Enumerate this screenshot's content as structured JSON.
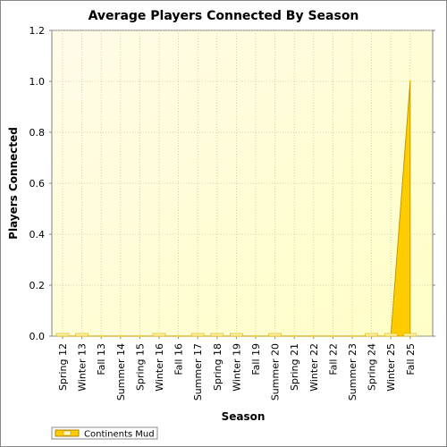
{
  "chart_data": {
    "type": "area",
    "title": "Average Players Connected By Season",
    "xlabel": "Season",
    "ylabel": "Players Connected",
    "ylim": [
      0,
      1.2
    ],
    "yticks": [
      "0.0",
      "0.2",
      "0.4",
      "0.6",
      "0.8",
      "1.0",
      "1.2"
    ],
    "grid": true,
    "legend_position": "bottom-left",
    "categories": [
      "Spring 12",
      "Winter 13",
      "Fall 13",
      "Summer 14",
      "Spring 15",
      "Winter 16",
      "Fall 16",
      "Summer 17",
      "Spring 18",
      "Winter 19",
      "Fall 19",
      "Summer 20",
      "Spring 21",
      "Winter 22",
      "Fall 22",
      "Summer 23",
      "Spring 24",
      "Winter 25",
      "Fall 25"
    ],
    "series": [
      {
        "name": "Continents Mud",
        "color": "#ffcc00",
        "values": [
          0,
          0,
          0,
          0,
          0,
          0,
          0,
          0,
          0,
          0,
          0,
          0,
          0,
          0,
          0,
          0,
          0,
          0,
          1.0
        ]
      }
    ],
    "plot_background": "#fffde0",
    "zero_markers_in": [
      "Spring 12",
      "Winter 13",
      "Winter 16",
      "Summer 17",
      "Spring 18",
      "Winter 19",
      "Summer 20",
      "Spring 24",
      "Winter 25",
      "Fall 25"
    ]
  }
}
